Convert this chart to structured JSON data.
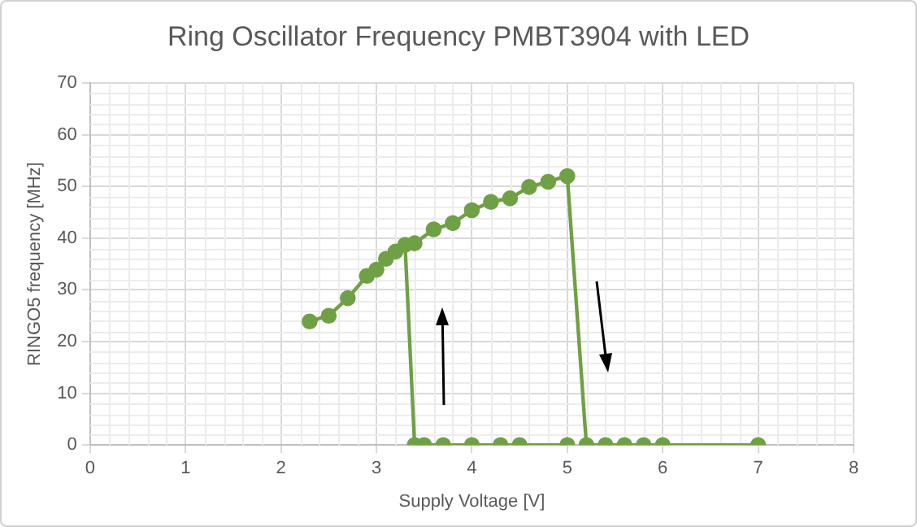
{
  "chart_data": {
    "type": "line",
    "title": "Ring Oscillator Frequency PMBT3904 with LED",
    "xlabel": "Supply Voltage [V]",
    "ylabel": "RINGO5 frequency [MHz]",
    "xlim": [
      0,
      8
    ],
    "xticks": [
      0,
      1,
      2,
      3,
      4,
      5,
      6,
      7,
      8
    ],
    "ylim": [
      0,
      70
    ],
    "yticks": [
      0,
      10,
      20,
      30,
      40,
      50,
      60,
      70
    ],
    "grid": true,
    "legend": false,
    "marker": "circle",
    "line_style": "solid",
    "series": [
      {
        "color": "#70a045",
        "x": [
          2.3,
          2.5,
          2.7,
          2.9,
          3.0,
          3.1,
          3.2,
          3.4,
          3.6,
          3.8,
          4.0,
          4.2,
          4.4,
          4.6,
          4.8,
          5.0,
          5.2,
          5.4,
          5.6,
          5.8,
          6.0,
          7.0
        ],
        "values": [
          23.9,
          25.0,
          28.4,
          32.7,
          33.9,
          36.0,
          37.4,
          39.0,
          41.7,
          42.9,
          45.4,
          47.0,
          47.7,
          49.9,
          50.9,
          52.0,
          0,
          0,
          0,
          0,
          0,
          0
        ]
      },
      {
        "color": "#70a045",
        "x": [
          5.0,
          4.5,
          4.3,
          4.0,
          3.7,
          3.5,
          3.4,
          3.3
        ],
        "values": [
          0,
          0,
          0,
          0,
          0,
          0,
          0,
          38.7
        ]
      }
    ]
  }
}
